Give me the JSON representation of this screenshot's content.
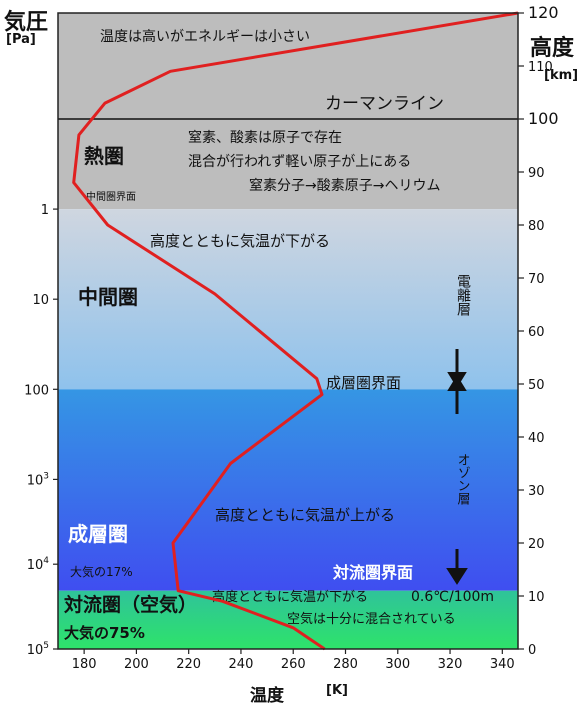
{
  "left_axis": {
    "title": "気圧",
    "unit": "[Pa]",
    "ticks": [
      {
        "label": "1",
        "km": 83
      },
      {
        "label": "10",
        "km": 66
      },
      {
        "label": "100",
        "km": 49
      },
      {
        "label": "10",
        "sup": "3",
        "km": 32
      },
      {
        "label": "10",
        "sup": "4",
        "km": 16
      },
      {
        "label": "10",
        "sup": "5",
        "km": 0
      }
    ]
  },
  "right_axis": {
    "title": "高度",
    "unit": "[km]",
    "ticks": [
      {
        "label": "120",
        "km": 120
      },
      {
        "label": "110",
        "km": 110
      },
      {
        "label": "100",
        "km": 100
      },
      {
        "label": "90",
        "km": 90
      },
      {
        "label": "80",
        "km": 80
      },
      {
        "label": "70",
        "km": 70
      },
      {
        "label": "60",
        "km": 60
      },
      {
        "label": "50",
        "km": 50
      },
      {
        "label": "40",
        "km": 40
      },
      {
        "label": "30",
        "km": 30
      },
      {
        "label": "20",
        "km": 20
      },
      {
        "label": "10",
        "km": 10
      },
      {
        "label": "0",
        "km": 0
      }
    ]
  },
  "x_axis": {
    "title": "温度",
    "unit": "[K]",
    "ticks": [
      180,
      200,
      220,
      240,
      260,
      280,
      300,
      320,
      340
    ]
  },
  "colors": {
    "thermosphere": "#bdbdbd",
    "mesosphere_top": "#cfd6e0",
    "mesosphere_bottom": "#8fc2ec",
    "stratosphere_top": "#3596e4",
    "stratosphere_bottom": "#3f4ef0",
    "troposphere_top": "#2fc39a",
    "troposphere_bottom": "#2ee36a",
    "curve": "#e02020"
  },
  "chart_data": {
    "type": "line",
    "x_domain": [
      170,
      346
    ],
    "y_domain": [
      0,
      120
    ],
    "layers": [
      {
        "name": "thermosphere_above",
        "from_km": 100,
        "to_km": 120,
        "color": "thermosphere"
      },
      {
        "name": "thermosphere",
        "from_km": 83,
        "to_km": 100,
        "color": "thermosphere"
      },
      {
        "name": "mesosphere",
        "from_km": 49,
        "to_km": 83,
        "color": "mesosphere"
      },
      {
        "name": "stratosphere",
        "from_km": 11,
        "to_km": 49,
        "color": "stratosphere"
      },
      {
        "name": "troposphere",
        "from_km": 0,
        "to_km": 11,
        "color": "troposphere"
      }
    ],
    "series": [
      {
        "points": [
          [
            272,
            0
          ],
          [
            260,
            4
          ],
          [
            233,
            9
          ],
          [
            216,
            11
          ],
          [
            214,
            20
          ],
          [
            236,
            35
          ],
          [
            271,
            48
          ],
          [
            269,
            51
          ],
          [
            230,
            67
          ],
          [
            189,
            80
          ],
          [
            176,
            88
          ],
          [
            178,
            97
          ],
          [
            188,
            103
          ],
          [
            213,
            109
          ],
          [
            346,
            120
          ]
        ]
      }
    ],
    "lines": [
      {
        "name": "karman-line",
        "km": 100
      }
    ],
    "annotations": {
      "karman": "カーマンライン",
      "thermo_note": "温度は高いがエネルギーは小さい",
      "thermo_name": "熱圏",
      "thermo_line1": "窒素、酸素は原子で存在",
      "thermo_line2": "混合が行われず軽い原子が上にある",
      "thermo_line3": "窒素分子→酸素原子→ヘリウム",
      "mesopause": "中間圏界面",
      "meso_desc": "高度とともに気温が下がる",
      "meso_name": "中間圏",
      "ionosphere": "電離層",
      "stratopause": "成層圏界面",
      "ozone": "オゾン層",
      "strato_desc": "高度とともに気温が上がる",
      "strato_name": "成層圏",
      "strato_air": "大気の17%",
      "tropopause": "対流圏界面",
      "tropo_desc": "高度とともに気温が下がる",
      "lapse_rate": "0.6℃/100m",
      "tropo_name": "対流圏（空気）",
      "tropo_mix": "空気は十分に混合されている",
      "tropo_air": "大気の75%"
    }
  }
}
